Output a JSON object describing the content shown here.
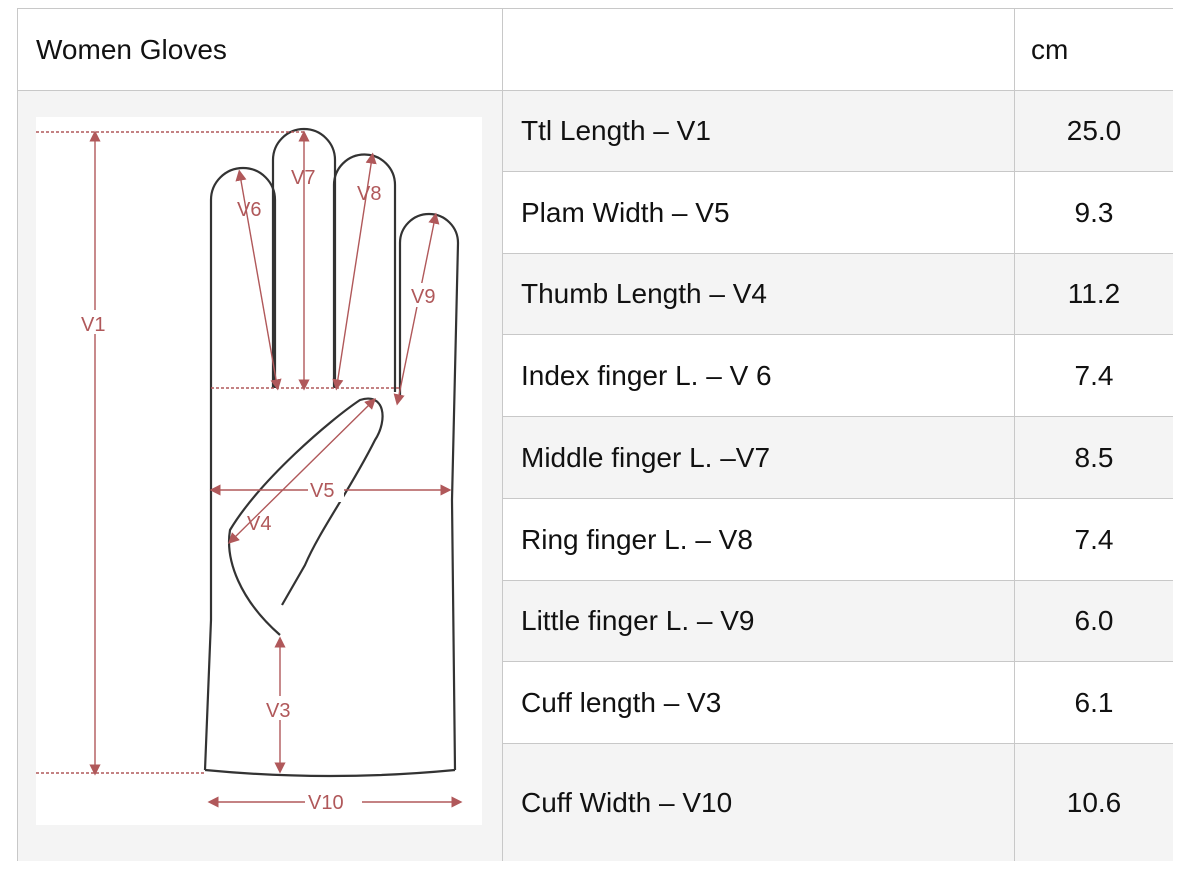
{
  "header": {
    "title": "Women Gloves",
    "middle": "",
    "unit": "cm"
  },
  "rows": [
    {
      "label": "Ttl Length – V1",
      "value": "25.0"
    },
    {
      "label": "Plam Width – V5",
      "value": "9.3"
    },
    {
      "label": "Thumb Length – V4",
      "value": "11.2"
    },
    {
      "label": "Index finger L. – V 6",
      "value": "7.4"
    },
    {
      "label": "Middle finger L. –V7",
      "value": "8.5"
    },
    {
      "label": "Ring finger L. – V8",
      "value": "7.4"
    },
    {
      "label": "Little finger L. – V9",
      "value": "6.0"
    },
    {
      "label": "Cuff length – V3",
      "value": "6.1"
    },
    {
      "label": "Cuff Width – V10",
      "value": "10.6"
    }
  ],
  "diagram": {
    "labels": {
      "v1": "V1",
      "v3": "V3",
      "v4": "V4",
      "v5": "V5",
      "v6": "V6",
      "v7": "V7",
      "v8": "V8",
      "v9": "V9",
      "v10": "V10"
    },
    "colors": {
      "outline": "#333333",
      "measure": "#b0585a",
      "row_alt": "#f4f4f4",
      "border": "#c8c8c8"
    }
  }
}
